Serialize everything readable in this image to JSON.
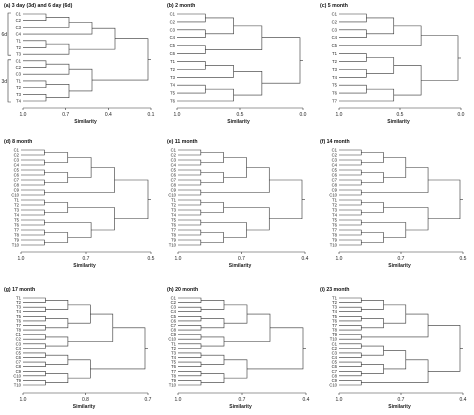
{
  "axis_label": "Similarity",
  "panels": [
    {
      "title": "(a) 3 day (3d) and 6 day (6d)",
      "ticks": [
        "1.0",
        "0.7",
        "0.4",
        "0.1"
      ],
      "labels": [
        "C1",
        "C2",
        "C3",
        "C4",
        "T1",
        "T2",
        "T3",
        "C1",
        "C2",
        "C3",
        "T1",
        "T2",
        "T3",
        "T4"
      ],
      "groups": [
        {
          "label": "6d",
          "from": 0,
          "to": 6
        },
        {
          "label": "3d",
          "from": 7,
          "to": 13
        }
      ]
    },
    {
      "title": "(b) 2 month",
      "ticks": [
        "1.0",
        "0.5",
        "0.0"
      ],
      "labels": [
        "C1",
        "C2",
        "C3",
        "C4",
        "C5",
        "C6",
        "T1",
        "T2",
        "T3",
        "T4",
        "T5",
        "T6"
      ],
      "groups": []
    },
    {
      "title": "(c) 5 month",
      "ticks": [
        "1.0",
        "0.5",
        "0.0"
      ],
      "labels": [
        "C1",
        "C2",
        "C3",
        "C4",
        "C5",
        "T1",
        "T2",
        "T3",
        "T4",
        "T5",
        "T6",
        "T7"
      ],
      "groups": []
    },
    {
      "title": "(d) 8 month",
      "ticks": [
        "1.0",
        "0.7",
        "0.5"
      ],
      "labels": [
        "C1",
        "C2",
        "C3",
        "C4",
        "C5",
        "C6",
        "C7",
        "C8",
        "C9",
        "C10",
        "T1",
        "T2",
        "T3",
        "T4",
        "T5",
        "T6",
        "T7",
        "T8",
        "T9",
        "T10"
      ],
      "groups": []
    },
    {
      "title": "(e) 11 month",
      "ticks": [
        "1.0",
        "0.7",
        "0.4"
      ],
      "labels": [
        "C1",
        "C2",
        "C3",
        "C4",
        "C5",
        "C6",
        "C7",
        "C8",
        "C9",
        "C10",
        "T1",
        "T2",
        "T3",
        "T4",
        "T5",
        "T6",
        "T7",
        "T8",
        "T9",
        "T10"
      ],
      "groups": []
    },
    {
      "title": "(f) 14 month",
      "ticks": [
        "1.0",
        "0.7",
        "0.5"
      ],
      "labels": [
        "C1",
        "C2",
        "C3",
        "C4",
        "C5",
        "C6",
        "C7",
        "C8",
        "C9",
        "C10",
        "T1",
        "T2",
        "T3",
        "T4",
        "T5",
        "T6",
        "T7",
        "T8",
        "T9",
        "T10"
      ],
      "groups": []
    },
    {
      "title": "(g) 17 month",
      "ticks": [
        "1.0",
        "0.8",
        "0.7"
      ],
      "labels": [
        "T1",
        "T2",
        "T3",
        "T4",
        "T5",
        "T6",
        "T7",
        "T8",
        "C1",
        "C2",
        "C3",
        "C4",
        "C5",
        "C6",
        "C7",
        "C8",
        "C9",
        "C10",
        "T9",
        "T10"
      ],
      "groups": []
    },
    {
      "title": "(h) 20 month",
      "ticks": [
        "1.0",
        "0.7",
        "0.4"
      ],
      "labels": [
        "C1",
        "C2",
        "C3",
        "C4",
        "C5",
        "C6",
        "C7",
        "C8",
        "C9",
        "C10",
        "T1",
        "T2",
        "T3",
        "T4",
        "T5",
        "T6",
        "T7",
        "T8",
        "T9",
        "T10"
      ],
      "groups": []
    },
    {
      "title": "(i) 23 month",
      "ticks": [
        "1.0",
        "0.7",
        "0.4"
      ],
      "labels": [
        "T1",
        "T2",
        "T3",
        "T4",
        "T5",
        "T6",
        "T7",
        "T8",
        "T9",
        "T10",
        "C1",
        "C2",
        "C3",
        "C4",
        "C5",
        "C6",
        "C7",
        "C8",
        "C9",
        "C10"
      ],
      "groups": []
    }
  ]
}
